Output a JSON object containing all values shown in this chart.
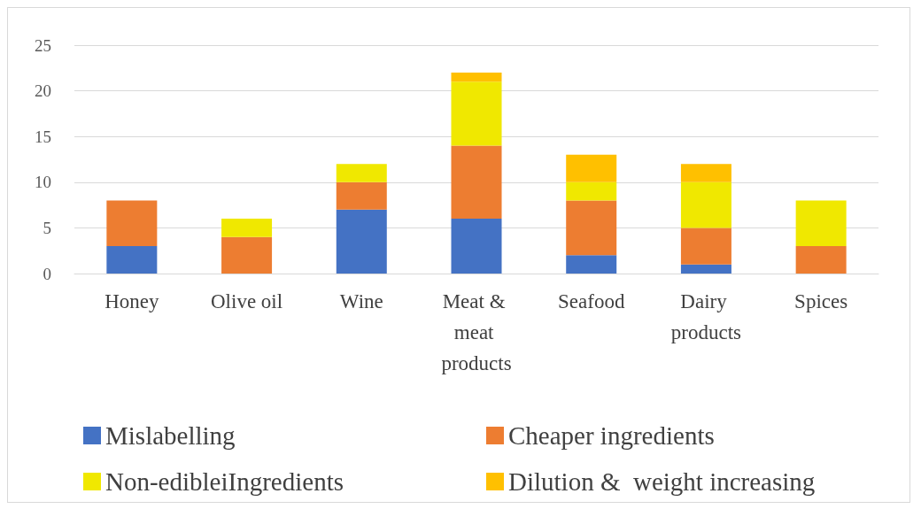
{
  "chart_data": {
    "type": "bar",
    "stacked": true,
    "categories": [
      "Honey",
      "Olive oil",
      "Wine",
      "Meat & meat products",
      "Seafood",
      "Dairy products",
      "Spices"
    ],
    "series": [
      {
        "name": "Mislabelling",
        "color": "#4472c4",
        "values": [
          3,
          0,
          7,
          6,
          2,
          1,
          0
        ]
      },
      {
        "name": "Cheaper ingredients",
        "color": "#ed7d31",
        "values": [
          5,
          4,
          3,
          8,
          6,
          4,
          3
        ]
      },
      {
        "name": "Non-edibleiIngredients",
        "color": "#f0e800",
        "values": [
          0,
          2,
          2,
          7,
          2,
          5,
          5
        ]
      },
      {
        "name": "Dilution &  weight increasing",
        "color": "#ffc000",
        "values": [
          0,
          0,
          0,
          1,
          3,
          2,
          0
        ]
      }
    ],
    "ylim": [
      0,
      25
    ],
    "yticks": [
      0,
      5,
      10,
      15,
      20,
      25
    ],
    "grid": "y",
    "legend": "bottom"
  }
}
